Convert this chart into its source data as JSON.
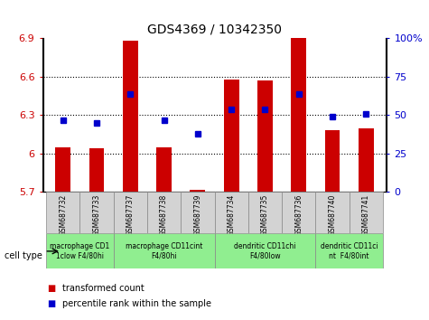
{
  "title": "GDS4369 / 10342350",
  "samples": [
    "GSM687732",
    "GSM687733",
    "GSM687737",
    "GSM687738",
    "GSM687739",
    "GSM687734",
    "GSM687735",
    "GSM687736",
    "GSM687740",
    "GSM687741"
  ],
  "red_values": [
    6.05,
    6.04,
    6.88,
    6.05,
    5.72,
    6.58,
    6.57,
    6.9,
    6.18,
    6.2
  ],
  "blue_values": [
    47,
    45,
    64,
    47,
    38,
    54,
    54,
    64,
    49,
    51
  ],
  "ylim_left": [
    5.7,
    6.9
  ],
  "ylim_right": [
    0,
    100
  ],
  "yticks_left": [
    5.7,
    6.0,
    6.3,
    6.6,
    6.9
  ],
  "yticks_right": [
    0,
    25,
    50,
    75,
    100
  ],
  "ytick_labels_left": [
    "5.7",
    "6",
    "6.3",
    "6.6",
    "6.9"
  ],
  "ytick_labels_right": [
    "0",
    "25",
    "50",
    "75",
    "100%"
  ],
  "cell_type_groups": [
    {
      "label": "macrophage CD1\n1clow F4/80hi",
      "start": 0,
      "end": 2
    },
    {
      "label": "macrophage CD11cint\nF4/80hi",
      "start": 2,
      "end": 5
    },
    {
      "label": "dendritic CD11chi\nF4/80low",
      "start": 5,
      "end": 8
    },
    {
      "label": "dendritic CD11ci\nnt  F4/80int",
      "start": 8,
      "end": 10
    }
  ],
  "legend_red_label": "transformed count",
  "legend_blue_label": "percentile rank within the sample",
  "cell_type_label": "cell type",
  "red_color": "#cc0000",
  "blue_color": "#0000cc",
  "bar_width": 0.45,
  "background_color": "#ffffff",
  "sample_box_color": "#d3d3d3",
  "group_box_color": "#90ee90",
  "grid_color": "#000000",
  "title_fontsize": 10,
  "axis_fontsize": 8,
  "sample_fontsize": 5.5,
  "group_fontsize": 5.5,
  "legend_fontsize": 7
}
